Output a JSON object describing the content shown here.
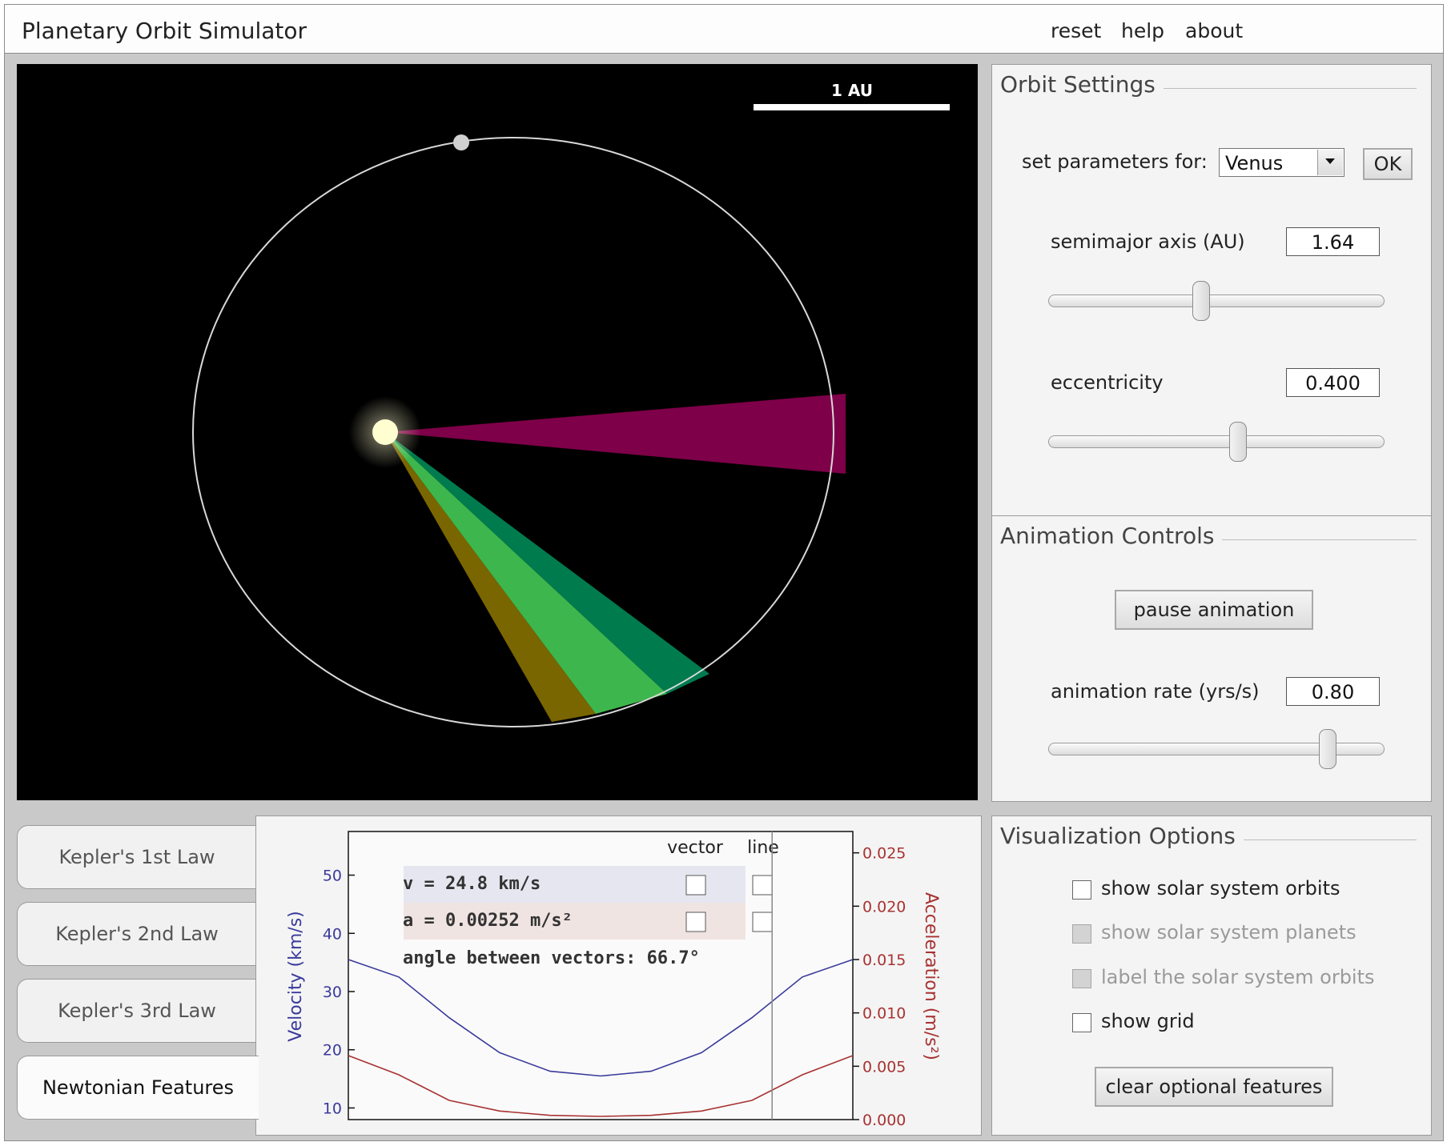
{
  "app": {
    "title": "Planetary Orbit Simulator",
    "menu": [
      "reset",
      "help",
      "about"
    ]
  },
  "simulation": {
    "scale_bar_label": "1 AU",
    "colors": {
      "background": "#000000",
      "orbit": "#d8d8d8",
      "sun": "#fffed0",
      "planet": "#d0d0d0",
      "sweep_magenta": "#7e0049",
      "sweep_dark_green": "#007b4e",
      "sweep_green": "#3db74d",
      "sweep_olive": "#7a6600"
    }
  },
  "orbit_settings": {
    "title": "Orbit Settings",
    "set_params_label": "set parameters for:",
    "selected_planet": "Venus",
    "ok_label": "OK",
    "semimajor_label": "semimajor axis (AU)",
    "semimajor_value": "1.64",
    "semimajor_slider_fraction": 0.455,
    "eccentricity_label": "eccentricity",
    "eccentricity_value": "0.400",
    "eccentricity_slider_fraction": 0.565
  },
  "animation_controls": {
    "title": "Animation Controls",
    "pause_label": "pause animation",
    "rate_label": "animation rate (yrs/s)",
    "rate_value": "0.80",
    "rate_slider_fraction": 0.83
  },
  "visualization_options": {
    "title": "Visualization Options",
    "options": [
      {
        "label": "show solar system orbits",
        "checked": false,
        "disabled": false
      },
      {
        "label": "show solar system planets",
        "checked": false,
        "disabled": true
      },
      {
        "label": "label the solar system orbits",
        "checked": false,
        "disabled": true
      },
      {
        "label": "show grid",
        "checked": false,
        "disabled": false
      }
    ],
    "clear_label": "clear optional features"
  },
  "tabs": [
    "Kepler's 1st Law",
    "Kepler's 2nd Law",
    "Kepler's 3rd Law",
    "Newtonian Features"
  ],
  "active_tab": "Newtonian Features",
  "newtonian": {
    "col_vector": "vector",
    "col_line": "line",
    "velocity_readout": "v = 24.8 km/s",
    "acceleration_readout": "a = 0.00252 m/s²",
    "angle_readout": "angle between vectors: 66.7°",
    "velocity_row_color": "#e6e6f0",
    "acceleration_row_color": "#f0e4e2"
  },
  "chart_data": {
    "type": "line",
    "x": [
      0,
      0.1,
      0.2,
      0.3,
      0.4,
      0.5,
      0.6,
      0.7,
      0.8,
      0.9,
      1.0
    ],
    "series": [
      {
        "axis": "left",
        "color": "#3a3a9c",
        "values": [
          35.5,
          32.5,
          25.5,
          19.5,
          16.3,
          15.5,
          16.3,
          19.5,
          25.5,
          32.5,
          35.5
        ]
      },
      {
        "axis": "right",
        "color": "#a83232",
        "values": [
          0.006,
          0.0042,
          0.0018,
          0.0008,
          0.0004,
          0.0003,
          0.0004,
          0.0008,
          0.0018,
          0.0042,
          0.006
        ]
      }
    ],
    "cursor_x": 0.84,
    "ylabel": "Velocity (km/s)",
    "y2label": "Acceleration (m/s²)",
    "ylim": [
      8,
      57.5
    ],
    "y2lim": [
      0,
      0.027
    ],
    "yticks": [
      "50",
      "40",
      "30",
      "20",
      "10"
    ],
    "y2ticks": [
      "0.025",
      "0.020",
      "0.015",
      "0.010",
      "0.005",
      "0.000"
    ]
  }
}
